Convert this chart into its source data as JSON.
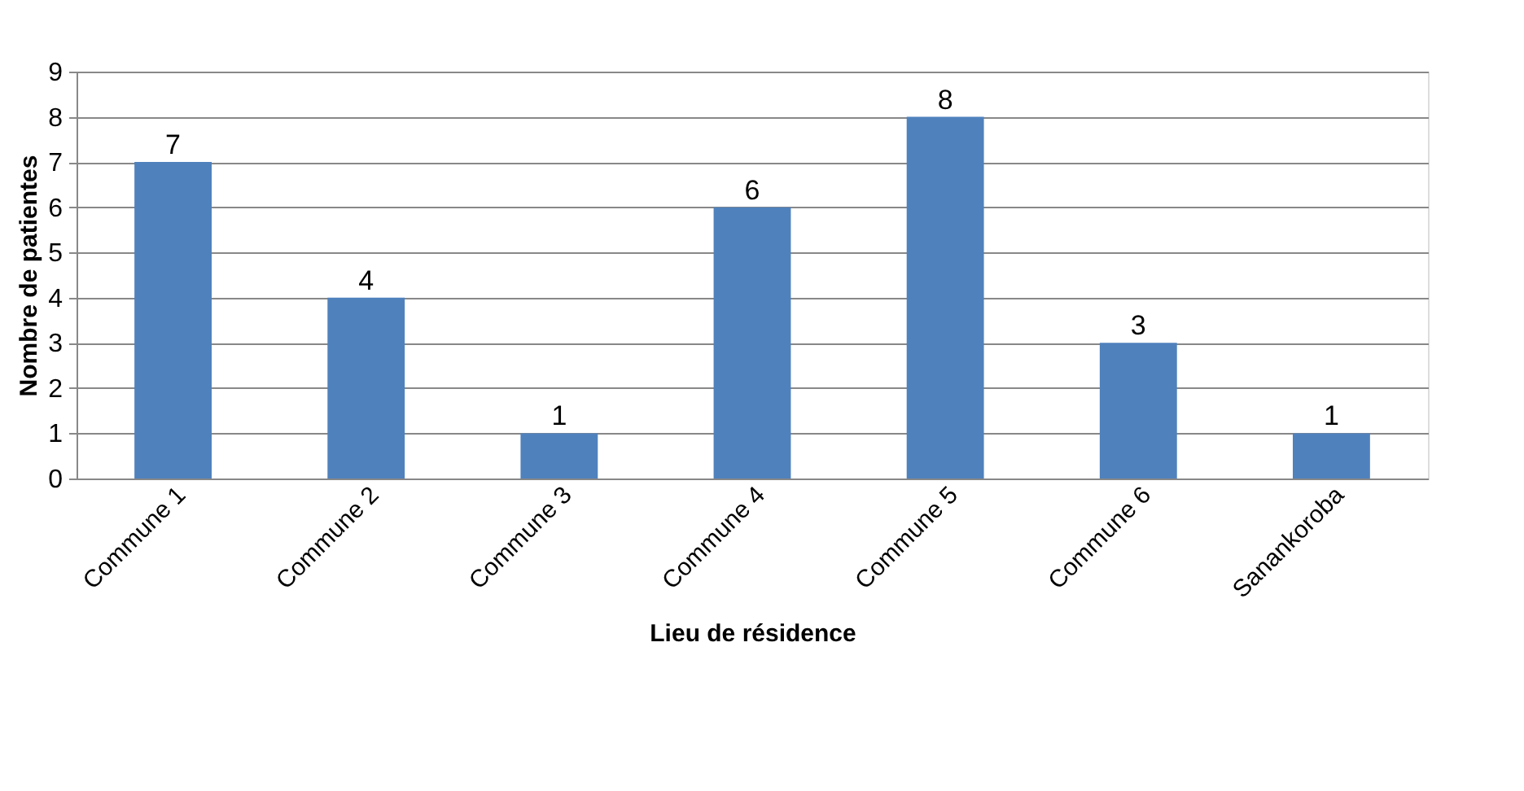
{
  "chart_data": {
    "type": "bar",
    "xlabel": "Lieu de résidence",
    "ylabel": "Nombre de patientes",
    "categories": [
      "Commune 1",
      "Commune 2",
      "Commune 3",
      "Commune 4",
      "Commune 5",
      "Commune 6",
      "Sanankoroba"
    ],
    "values": [
      7,
      4,
      1,
      6,
      8,
      3,
      1
    ],
    "color": "#4f81bd",
    "ylim": [
      0,
      9
    ],
    "yticks": [
      0,
      1,
      2,
      3,
      4,
      5,
      6,
      7,
      8,
      9
    ],
    "grid": "y",
    "data_labels": true
  }
}
